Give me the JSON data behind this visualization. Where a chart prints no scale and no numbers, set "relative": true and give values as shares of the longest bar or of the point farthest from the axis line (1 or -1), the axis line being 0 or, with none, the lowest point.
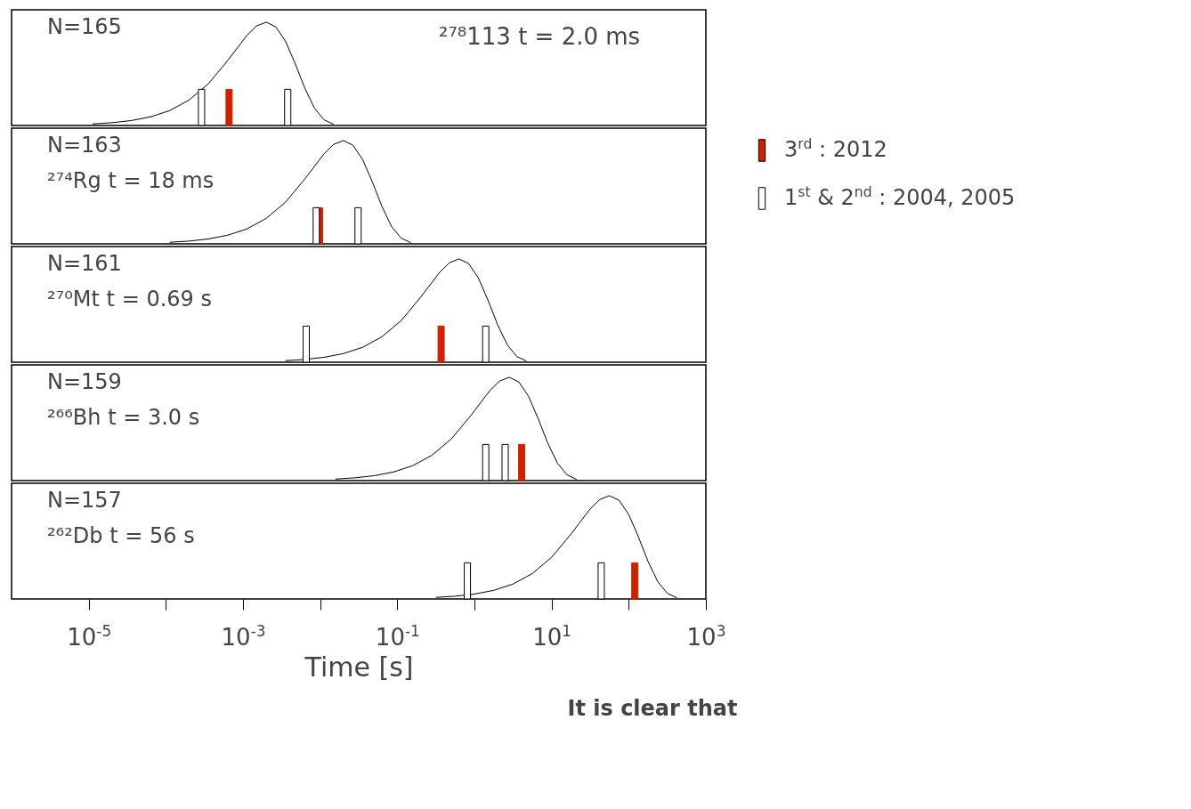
{
  "chart_data": [
    {
      "type": "line",
      "relative": true,
      "log": "x",
      "xlim": [
        1e-06,
        1000
      ],
      "tick_labels": false,
      "legend": false,
      "annotations": [
        "N=165",
        "²⁷⁸113  t = 2.0 ms"
      ],
      "series": [
        {
          "color": "#000000",
          "x": [
            1.122e-05,
            1.995e-05,
            3.548e-05,
            6.31e-05,
            0.0001122,
            0.0001995,
            0.0003548,
            0.000631,
            0.001122,
            0.001496,
            0.001995,
            0.002661,
            0.003548,
            0.004732,
            0.00631,
            0.008414,
            0.01122,
            0.01496
          ],
          "values": [
            0.0152,
            0.0269,
            0.0475,
            0.0834,
            0.1443,
            0.246,
            0.403,
            0.627,
            0.871,
            0.963,
            1,
            0.955,
            0.817,
            0.602,
            0.364,
            0.169,
            0.0553,
            0.0113
          ]
        },
        {
          "type": "bar",
          "color": "#cc2200",
          "x": [
            0.00066
          ],
          "values": [
            0.35
          ]
        },
        {
          "type": "bar",
          "color": "#ffffff",
          "x": [
            0.00029,
            0.0038
          ],
          "values": [
            0.35,
            0.35
          ]
        }
      ]
    },
    {
      "type": "line",
      "relative": true,
      "log": "x",
      "xlim": [
        1e-06,
        1000
      ],
      "tick_labels": false,
      "legend": "right",
      "annotations": [
        "N=163",
        "²⁷⁴Rg  t = 18 ms"
      ],
      "series": [
        {
          "color": "#000000",
          "x": [
            0.0001122,
            0.0001995,
            0.0003548,
            0.000631,
            0.001122,
            0.001995,
            0.003548,
            0.00631,
            0.01122,
            0.01496,
            0.01995,
            0.02661,
            0.03548,
            0.04732,
            0.0631,
            0.08414,
            0.1122,
            0.1496
          ],
          "values": [
            0.0152,
            0.0269,
            0.0475,
            0.0834,
            0.1443,
            0.246,
            0.403,
            0.627,
            0.871,
            0.963,
            1,
            0.955,
            0.817,
            0.602,
            0.364,
            0.169,
            0.0553,
            0.0113
          ]
        },
        {
          "type": "bar",
          "name": "3$^{rd}$        : 2012",
          "color": "#cc2200",
          "x": [
            0.0098
          ],
          "values": [
            0.35
          ]
        },
        {
          "type": "bar",
          "name": "1$^{st}$ & 2$^{nd}$ : 2004, 2005",
          "color": "#ffffff",
          "x": [
            0.0089,
            0.031
          ],
          "values": [
            0.35,
            0.35
          ]
        }
      ]
    },
    {
      "type": "line",
      "relative": true,
      "log": "x",
      "xlim": [
        1e-06,
        1000
      ],
      "tick_labels": false,
      "legend": false,
      "annotations": [
        "N=161",
        "²⁷⁰Mt  t = 0.69 s"
      ],
      "series": [
        {
          "color": "#000000",
          "x": [
            0.003548,
            0.00631,
            0.01122,
            0.01995,
            0.03548,
            0.0631,
            0.1122,
            0.1995,
            0.3548,
            0.4732,
            0.631,
            0.8414,
            1.122,
            1.496,
            1.995,
            2.661,
            3.548,
            4.732
          ],
          "values": [
            0.0152,
            0.0269,
            0.0475,
            0.0834,
            0.1443,
            0.246,
            0.403,
            0.627,
            0.871,
            0.963,
            1,
            0.955,
            0.817,
            0.602,
            0.364,
            0.169,
            0.0553,
            0.0113
          ]
        },
        {
          "type": "bar",
          "color": "#cc2200",
          "x": [
            0.37
          ],
          "values": [
            0.35
          ]
        },
        {
          "type": "bar",
          "color": "#ffffff",
          "x": [
            0.0066,
            1.4
          ],
          "values": [
            0.35,
            0.35
          ]
        }
      ]
    },
    {
      "type": "line",
      "relative": true,
      "log": "x",
      "xlim": [
        1e-06,
        1000
      ],
      "tick_labels": false,
      "legend": false,
      "annotations": [
        "N=159",
        "²⁶⁶Bh  t = 3.0 s"
      ],
      "series": [
        {
          "color": "#000000",
          "x": [
            0.01585,
            0.02818,
            0.05012,
            0.08913,
            0.1585,
            0.2818,
            0.5012,
            0.8913,
            1.585,
            2.113,
            2.818,
            3.758,
            5.012,
            6.683,
            8.913,
            11.89,
            15.85,
            21.13
          ],
          "values": [
            0.0152,
            0.0269,
            0.0475,
            0.0834,
            0.1443,
            0.246,
            0.403,
            0.627,
            0.871,
            0.963,
            1,
            0.955,
            0.817,
            0.602,
            0.364,
            0.169,
            0.0553,
            0.0113
          ]
        },
        {
          "type": "bar",
          "color": "#cc2200",
          "x": [
            4.1
          ],
          "values": [
            0.35
          ]
        },
        {
          "type": "bar",
          "color": "#ffffff",
          "x": [
            1.4,
            2.5
          ],
          "values": [
            0.35,
            0.35
          ]
        }
      ]
    },
    {
      "type": "line",
      "relative": true,
      "log": "x",
      "xlim": [
        1e-06,
        1000
      ],
      "tick_labels": "x",
      "legend": false,
      "xlabel": "Time [s]",
      "xticks": [
        {
          "value": 1e-05,
          "label": "10$^{-5}$"
        },
        {
          "value": 0.0001,
          "label": null
        },
        {
          "value": 0.001,
          "label": "10$^{-3}$"
        },
        {
          "value": 0.01,
          "label": null
        },
        {
          "value": 0.1,
          "label": "10$^{-1}$"
        },
        {
          "value": 1,
          "label": null
        },
        {
          "value": 10,
          "label": "10$^{1}$"
        },
        {
          "value": 100,
          "label": null
        },
        {
          "value": 1000,
          "label": "10$^{3}$"
        }
      ],
      "annotations": [
        "N=157",
        "²⁶²Db  t = 56 s",
        "It is clear that"
      ],
      "series": [
        {
          "color": "#000000",
          "x": [
            0.3162,
            0.5623,
            1,
            1.778,
            3.162,
            5.623,
            10,
            17.78,
            31.62,
            42.17,
            56.23,
            74.99,
            100,
            133.4,
            177.8,
            237.1,
            316.2,
            421.7
          ],
          "values": [
            0.0152,
            0.0269,
            0.0475,
            0.0834,
            0.1443,
            0.246,
            0.403,
            0.627,
            0.871,
            0.963,
            1,
            0.955,
            0.817,
            0.602,
            0.364,
            0.169,
            0.0553,
            0.0113
          ]
        },
        {
          "type": "bar",
          "color": "#cc2200",
          "x": [
            120
          ],
          "values": [
            0.35
          ]
        },
        {
          "type": "bar",
          "color": "#ffffff",
          "x": [
            0.81,
            44
          ],
          "values": [
            0.35,
            0.35
          ]
        }
      ]
    }
  ]
}
